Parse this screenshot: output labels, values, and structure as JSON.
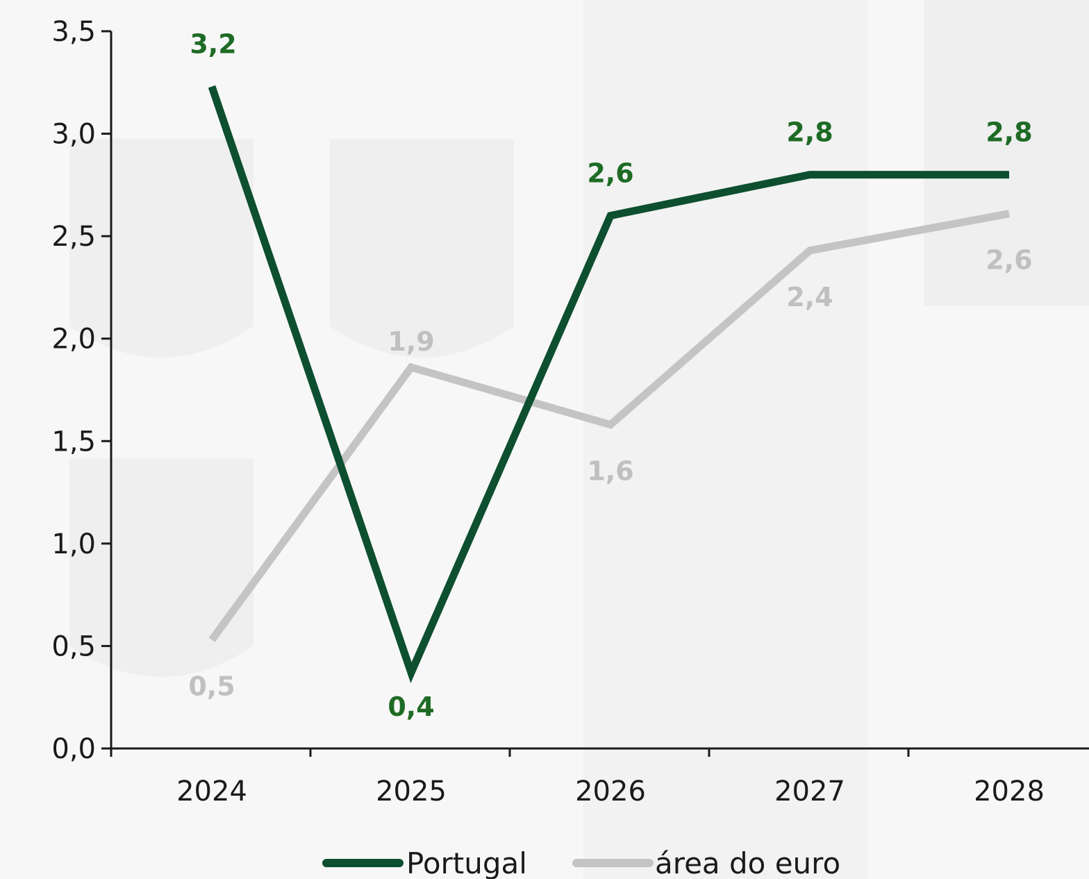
{
  "chart_data": {
    "type": "line",
    "title": "",
    "xlabel": "",
    "ylabel": "",
    "categories": [
      "2024",
      "2025",
      "2026",
      "2027",
      "2028"
    ],
    "ylim": [
      0,
      3.5
    ],
    "yticks": [
      0.0,
      0.5,
      1.0,
      1.5,
      2.0,
      2.5,
      3.0,
      3.5
    ],
    "ytick_labels": [
      "0,0",
      "0,5",
      "1,0",
      "1,5",
      "2,0",
      "2,5",
      "3,0",
      "3,5"
    ],
    "grid": false,
    "legend_position": "bottom",
    "series": [
      {
        "name": "Portugal",
        "values": [
          3.23,
          0.37,
          2.6,
          2.8,
          2.8
        ],
        "labels": [
          "3,2",
          "0,4",
          "2,6",
          "2,8",
          "2,8"
        ],
        "label_position": "above",
        "color": "#0d4f2f",
        "label_color": "#1e6b25"
      },
      {
        "name": "área do euro",
        "values": [
          0.53,
          1.86,
          1.58,
          2.43,
          2.61
        ],
        "labels": [
          "0,5",
          "1,9",
          "1,6",
          "2,4",
          "2,6"
        ],
        "label_position": "mixed",
        "color": "#c4c4c4",
        "label_color": "#c0c0c0"
      }
    ]
  }
}
